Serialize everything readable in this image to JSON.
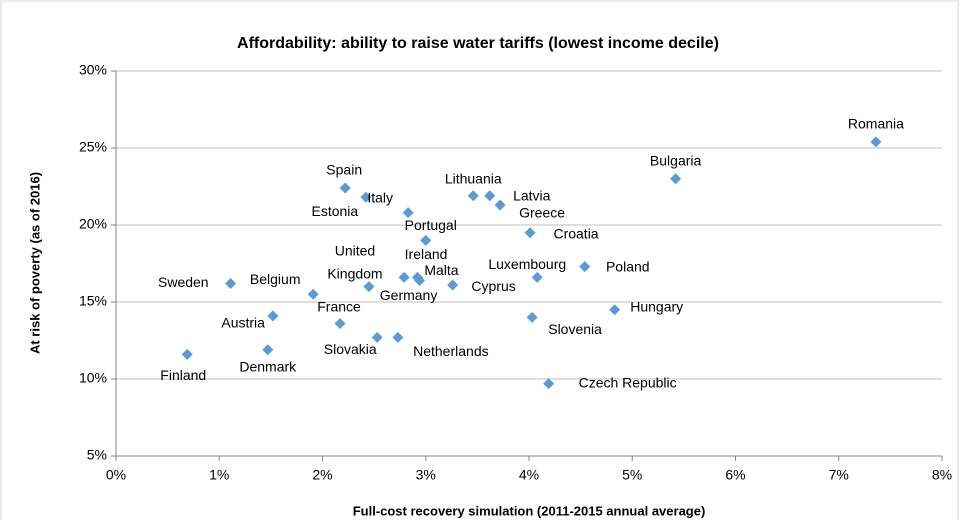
{
  "chart_data": {
    "type": "scatter",
    "title": "Affordability: ability to raise water tariffs (lowest income decile)",
    "x_label": "Full-cost recovery simulation (2011-2015 annual average)",
    "y_label": "At risk of poverty (as of 2016)",
    "color": "#5b9bd5",
    "grid": true,
    "xlim": [
      0,
      8
    ],
    "ylim": [
      5,
      30
    ],
    "xticks": [
      {
        "value": 0,
        "label": "0%"
      },
      {
        "value": 1,
        "label": "1%"
      },
      {
        "value": 2,
        "label": "2%"
      },
      {
        "value": 3,
        "label": "3%"
      },
      {
        "value": 4,
        "label": "4%"
      },
      {
        "value": 5,
        "label": "5%"
      },
      {
        "value": 6,
        "label": "6%"
      },
      {
        "value": 7,
        "label": "7%"
      },
      {
        "value": 8,
        "label": "8%"
      }
    ],
    "yticks": [
      {
        "value": 5,
        "label": "5%"
      },
      {
        "value": 10,
        "label": "10%"
      },
      {
        "value": 15,
        "label": "15%"
      },
      {
        "value": 20,
        "label": "20%"
      },
      {
        "value": 25,
        "label": "25%"
      },
      {
        "value": 30,
        "label": "30%"
      }
    ],
    "labels": [
      "Finland",
      "Sweden",
      "Austria",
      "Denmark",
      "Belgium",
      "France",
      "Slovakia",
      "Netherlands",
      "United Kingdom",
      "Spain",
      "Estonia",
      "Italy",
      "Portugal",
      "Ireland",
      "Malta",
      "Germany",
      "Cyprus",
      "Lithuania",
      "Latvia",
      "Greece",
      "Croatia",
      "Luxembourg",
      "Slovenia",
      "Czech Republic",
      "Poland",
      "Hungary",
      "Bulgaria",
      "Romania"
    ],
    "x": [
      0.69,
      1.11,
      1.52,
      1.47,
      1.91,
      2.17,
      2.53,
      2.73,
      2.45,
      2.22,
      2.42,
      2.83,
      3.0,
      2.79,
      2.92,
      2.94,
      3.26,
      3.46,
      3.62,
      3.72,
      4.01,
      4.08,
      4.03,
      4.19,
      4.54,
      4.83,
      5.42,
      7.36
    ],
    "y": [
      11.6,
      16.2,
      14.1,
      11.9,
      15.5,
      13.6,
      12.7,
      12.7,
      16.0,
      22.4,
      21.8,
      20.8,
      19.0,
      16.6,
      16.6,
      16.4,
      16.1,
      21.9,
      21.9,
      21.3,
      19.5,
      16.6,
      14.0,
      9.7,
      17.3,
      14.5,
      23.0,
      25.4
    ]
  }
}
